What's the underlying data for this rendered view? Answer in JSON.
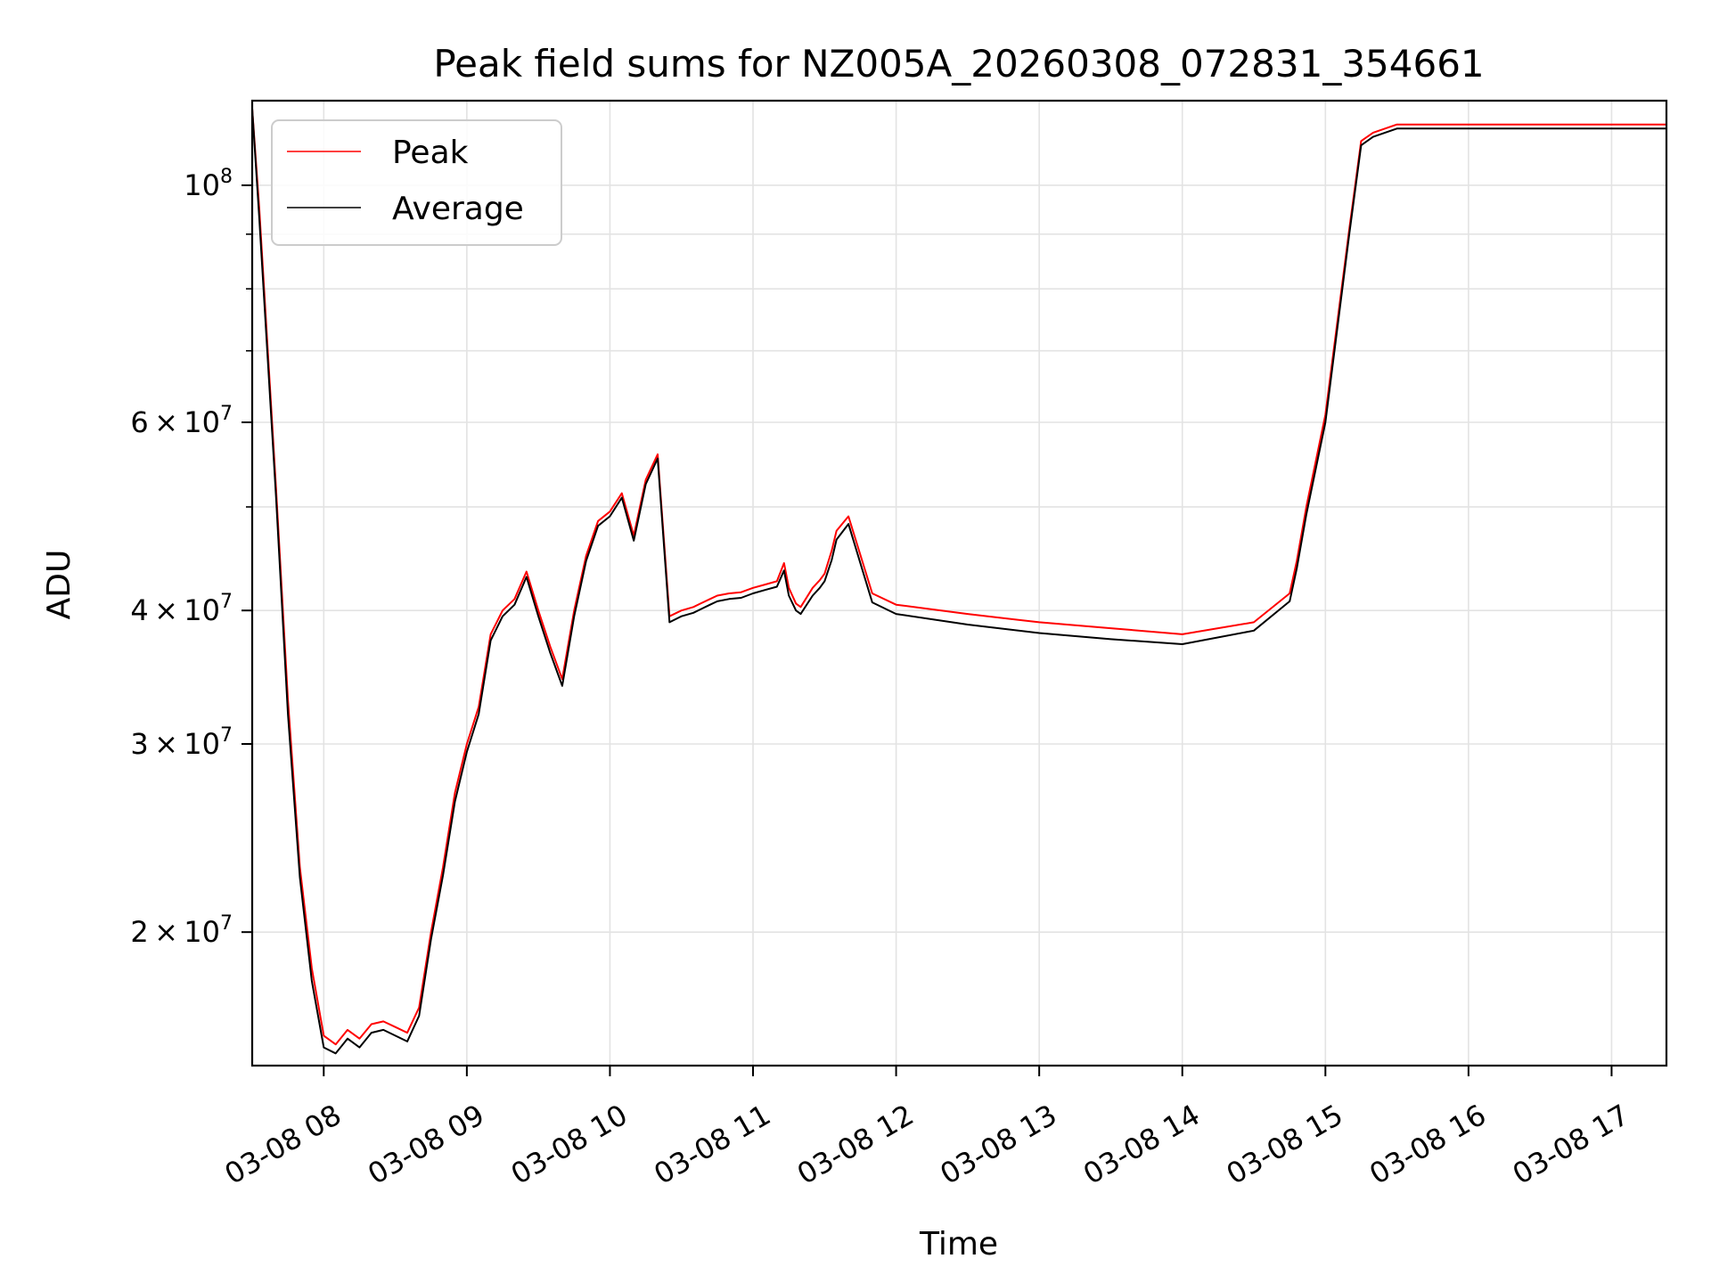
{
  "chart_data": {
    "type": "line",
    "title": "Peak field sums for NZ005A_20260308_072831_354661",
    "xlabel": "Time",
    "ylabel": "ADU",
    "yscale": "log",
    "grid": true,
    "legend_position": "upper-left",
    "xlim": [
      "2026-03-08 07:30",
      "2026-03-08 17:23"
    ],
    "ylim": [
      15000000,
      120000000
    ],
    "x_ticks": [
      {
        "value": "2026-03-08 08:00",
        "label": "03-08 08"
      },
      {
        "value": "2026-03-08 09:00",
        "label": "03-08 09"
      },
      {
        "value": "2026-03-08 10:00",
        "label": "03-08 10"
      },
      {
        "value": "2026-03-08 11:00",
        "label": "03-08 11"
      },
      {
        "value": "2026-03-08 12:00",
        "label": "03-08 12"
      },
      {
        "value": "2026-03-08 13:00",
        "label": "03-08 13"
      },
      {
        "value": "2026-03-08 14:00",
        "label": "03-08 14"
      },
      {
        "value": "2026-03-08 15:00",
        "label": "03-08 15"
      },
      {
        "value": "2026-03-08 16:00",
        "label": "03-08 16"
      },
      {
        "value": "2026-03-08 17:00",
        "label": "03-08 17"
      }
    ],
    "y_ticks": [
      {
        "value": 20000000,
        "mantissa": "2",
        "exponent": "7"
      },
      {
        "value": 30000000,
        "mantissa": "3",
        "exponent": "7"
      },
      {
        "value": 40000000,
        "mantissa": "4",
        "exponent": "7"
      },
      {
        "value": 60000000,
        "mantissa": "6",
        "exponent": "7"
      },
      {
        "value": 100000000,
        "mantissa": "",
        "exponent": "8"
      }
    ],
    "y_minor_ticks": [
      50000000,
      70000000,
      80000000,
      90000000
    ],
    "series": [
      {
        "name": "Peak",
        "color": "#ff0000",
        "x": [
          "2026-03-08 07:30",
          "2026-03-08 07:33",
          "2026-03-08 07:40",
          "2026-03-08 07:45",
          "2026-03-08 07:50",
          "2026-03-08 07:55",
          "2026-03-08 08:00",
          "2026-03-08 08:05",
          "2026-03-08 08:10",
          "2026-03-08 08:15",
          "2026-03-08 08:20",
          "2026-03-08 08:25",
          "2026-03-08 08:30",
          "2026-03-08 08:35",
          "2026-03-08 08:40",
          "2026-03-08 08:45",
          "2026-03-08 08:50",
          "2026-03-08 08:55",
          "2026-03-08 09:00",
          "2026-03-08 09:05",
          "2026-03-08 09:10",
          "2026-03-08 09:15",
          "2026-03-08 09:20",
          "2026-03-08 09:25",
          "2026-03-08 09:30",
          "2026-03-08 09:35",
          "2026-03-08 09:40",
          "2026-03-08 09:45",
          "2026-03-08 09:50",
          "2026-03-08 09:55",
          "2026-03-08 10:00",
          "2026-03-08 10:05",
          "2026-03-08 10:10",
          "2026-03-08 10:15",
          "2026-03-08 10:20",
          "2026-03-08 10:25",
          "2026-03-08 10:30",
          "2026-03-08 10:35",
          "2026-03-08 10:38",
          "2026-03-08 10:42",
          "2026-03-08 10:45",
          "2026-03-08 10:50",
          "2026-03-08 10:55",
          "2026-03-08 11:00",
          "2026-03-08 11:05",
          "2026-03-08 11:10",
          "2026-03-08 11:13",
          "2026-03-08 11:15",
          "2026-03-08 11:18",
          "2026-03-08 11:20",
          "2026-03-08 11:25",
          "2026-03-08 11:28",
          "2026-03-08 11:30",
          "2026-03-08 11:33",
          "2026-03-08 11:35",
          "2026-03-08 11:40",
          "2026-03-08 11:50",
          "2026-03-08 12:00",
          "2026-03-08 12:30",
          "2026-03-08 13:00",
          "2026-03-08 13:30",
          "2026-03-08 14:00",
          "2026-03-08 14:30",
          "2026-03-08 14:45",
          "2026-03-08 14:48",
          "2026-03-08 14:52",
          "2026-03-08 15:00",
          "2026-03-08 15:10",
          "2026-03-08 15:15",
          "2026-03-08 15:20",
          "2026-03-08 15:25",
          "2026-03-08 15:30",
          "2026-03-08 15:35",
          "2026-03-08 15:40",
          "2026-03-08 15:45",
          "2026-03-08 15:50",
          "2026-03-08 16:00",
          "2026-03-08 16:20",
          "2026-03-08 16:40",
          "2026-03-08 16:50",
          "2026-03-08 16:55",
          "2026-03-08 17:00",
          "2026-03-08 17:05",
          "2026-03-08 17:08",
          "2026-03-08 17:12",
          "2026-03-08 17:15",
          "2026-03-08 17:23"
        ],
        "values": [
          118000000,
          95000000,
          52000000,
          33000000,
          23000000,
          18500000,
          16000000,
          15700000,
          16200000,
          15900000,
          16400000,
          16500000,
          16300000,
          16100000,
          17000000,
          20000000,
          23000000,
          27000000,
          30000000,
          32500000,
          38000000,
          40000000,
          41000000,
          43500000,
          40000000,
          37000000,
          34500000,
          40000000,
          45000000,
          48500000,
          49500000,
          51500000,
          47000000,
          53000000,
          56000000,
          39500000,
          40000000,
          40300000,
          40600000,
          41000000,
          41300000,
          41500000,
          41600000,
          42000000,
          42300000,
          42600000,
          44300000,
          42000000,
          40600000,
          40300000,
          42000000,
          42700000,
          43300000,
          45500000,
          47500000,
          49000000,
          41500000,
          40500000,
          39700000,
          39000000,
          38500000,
          38000000,
          39000000,
          41500000,
          44500000,
          50000000,
          61000000,
          91000000,
          110000000,
          112000000,
          113000000,
          114000000,
          114000000,
          114000000,
          114000000,
          114000000,
          114000000,
          114000000,
          114000000,
          114000000,
          114000000,
          114000000,
          114000000,
          114000000,
          114000000,
          114000000,
          114000000
        ]
      },
      {
        "name": "Average",
        "color": "#000000",
        "x": [
          "2026-03-08 07:30",
          "2026-03-08 07:33",
          "2026-03-08 07:40",
          "2026-03-08 07:45",
          "2026-03-08 07:50",
          "2026-03-08 07:55",
          "2026-03-08 08:00",
          "2026-03-08 08:05",
          "2026-03-08 08:10",
          "2026-03-08 08:15",
          "2026-03-08 08:20",
          "2026-03-08 08:25",
          "2026-03-08 08:30",
          "2026-03-08 08:35",
          "2026-03-08 08:40",
          "2026-03-08 08:45",
          "2026-03-08 08:50",
          "2026-03-08 08:55",
          "2026-03-08 09:00",
          "2026-03-08 09:05",
          "2026-03-08 09:10",
          "2026-03-08 09:15",
          "2026-03-08 09:20",
          "2026-03-08 09:25",
          "2026-03-08 09:30",
          "2026-03-08 09:35",
          "2026-03-08 09:40",
          "2026-03-08 09:45",
          "2026-03-08 09:50",
          "2026-03-08 09:55",
          "2026-03-08 10:00",
          "2026-03-08 10:05",
          "2026-03-08 10:10",
          "2026-03-08 10:15",
          "2026-03-08 10:20",
          "2026-03-08 10:25",
          "2026-03-08 10:30",
          "2026-03-08 10:35",
          "2026-03-08 10:38",
          "2026-03-08 10:42",
          "2026-03-08 10:45",
          "2026-03-08 10:50",
          "2026-03-08 10:55",
          "2026-03-08 11:00",
          "2026-03-08 11:05",
          "2026-03-08 11:10",
          "2026-03-08 11:13",
          "2026-03-08 11:15",
          "2026-03-08 11:18",
          "2026-03-08 11:20",
          "2026-03-08 11:25",
          "2026-03-08 11:28",
          "2026-03-08 11:30",
          "2026-03-08 11:33",
          "2026-03-08 11:35",
          "2026-03-08 11:40",
          "2026-03-08 11:50",
          "2026-03-08 12:00",
          "2026-03-08 12:30",
          "2026-03-08 13:00",
          "2026-03-08 13:30",
          "2026-03-08 14:00",
          "2026-03-08 14:30",
          "2026-03-08 14:45",
          "2026-03-08 14:48",
          "2026-03-08 14:52",
          "2026-03-08 15:00",
          "2026-03-08 15:10",
          "2026-03-08 15:15",
          "2026-03-08 15:20",
          "2026-03-08 15:25",
          "2026-03-08 15:30",
          "2026-03-08 15:35",
          "2026-03-08 15:40",
          "2026-03-08 15:45",
          "2026-03-08 15:50",
          "2026-03-08 16:00",
          "2026-03-08 16:20",
          "2026-03-08 16:40",
          "2026-03-08 16:50",
          "2026-03-08 16:55",
          "2026-03-08 17:00",
          "2026-03-08 17:05",
          "2026-03-08 17:08",
          "2026-03-08 17:12",
          "2026-03-08 17:15",
          "2026-03-08 17:23"
        ],
        "values": [
          118000000,
          93000000,
          51000000,
          32000000,
          22500000,
          18000000,
          15600000,
          15400000,
          15900000,
          15600000,
          16100000,
          16200000,
          16000000,
          15800000,
          16700000,
          19700000,
          22600000,
          26500000,
          29500000,
          32000000,
          37500000,
          39500000,
          40500000,
          43000000,
          39500000,
          36500000,
          34000000,
          39500000,
          44500000,
          48000000,
          49000000,
          51000000,
          46500000,
          52500000,
          55500000,
          39000000,
          39500000,
          39800000,
          40100000,
          40500000,
          40800000,
          41000000,
          41100000,
          41500000,
          41800000,
          42100000,
          43600000,
          41300000,
          40000000,
          39700000,
          41300000,
          42000000,
          42600000,
          44600000,
          46600000,
          48200000,
          40700000,
          39700000,
          38800000,
          38100000,
          37600000,
          37200000,
          38300000,
          40800000,
          43800000,
          49200000,
          60000000,
          90000000,
          109000000,
          111000000,
          112000000,
          113000000,
          113000000,
          113000000,
          113000000,
          113000000,
          113000000,
          113000000,
          113000000,
          113000000,
          113000000,
          113000000,
          113000000,
          113000000,
          113000000,
          113000000,
          113000000
        ]
      }
    ]
  }
}
